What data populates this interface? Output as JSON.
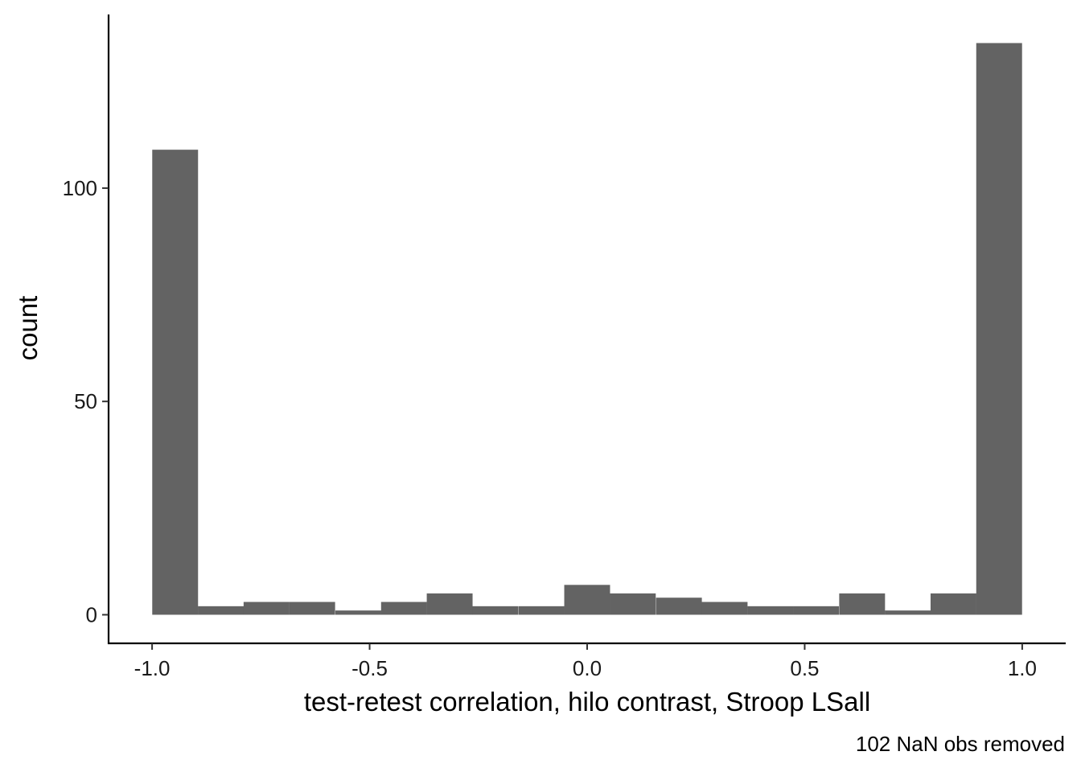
{
  "chart_data": {
    "type": "bar",
    "xlabel": "test-retest correlation, hilo contrast, Stroop LSall",
    "ylabel": "count",
    "caption": "102 NaN obs removed",
    "bar_color": "#636363",
    "bin_width": 0.1053,
    "bins": [
      {
        "center": -0.947,
        "count": 109
      },
      {
        "center": -0.842,
        "count": 2
      },
      {
        "center": -0.737,
        "count": 3
      },
      {
        "center": -0.632,
        "count": 3
      },
      {
        "center": -0.526,
        "count": 1
      },
      {
        "center": -0.421,
        "count": 3
      },
      {
        "center": -0.316,
        "count": 5
      },
      {
        "center": -0.211,
        "count": 2
      },
      {
        "center": -0.105,
        "count": 2
      },
      {
        "center": 0.0,
        "count": 7
      },
      {
        "center": 0.105,
        "count": 5
      },
      {
        "center": 0.211,
        "count": 4
      },
      {
        "center": 0.316,
        "count": 3
      },
      {
        "center": 0.421,
        "count": 2
      },
      {
        "center": 0.526,
        "count": 2
      },
      {
        "center": 0.632,
        "count": 5
      },
      {
        "center": 0.737,
        "count": 1
      },
      {
        "center": 0.842,
        "count": 5
      },
      {
        "center": 0.947,
        "count": 134
      }
    ],
    "xlim": [
      -1.1,
      1.1
    ],
    "ylim": [
      -6.7,
      140.7
    ],
    "x_ticks": [
      {
        "value": -1.0,
        "label": "-1.0"
      },
      {
        "value": -0.5,
        "label": "-0.5"
      },
      {
        "value": 0.0,
        "label": "0.0"
      },
      {
        "value": 0.5,
        "label": "0.5"
      },
      {
        "value": 1.0,
        "label": "1.0"
      }
    ],
    "y_ticks": [
      {
        "value": 0,
        "label": "0"
      },
      {
        "value": 50,
        "label": "50"
      },
      {
        "value": 100,
        "label": "100"
      }
    ],
    "grid": false,
    "legend": "none"
  }
}
